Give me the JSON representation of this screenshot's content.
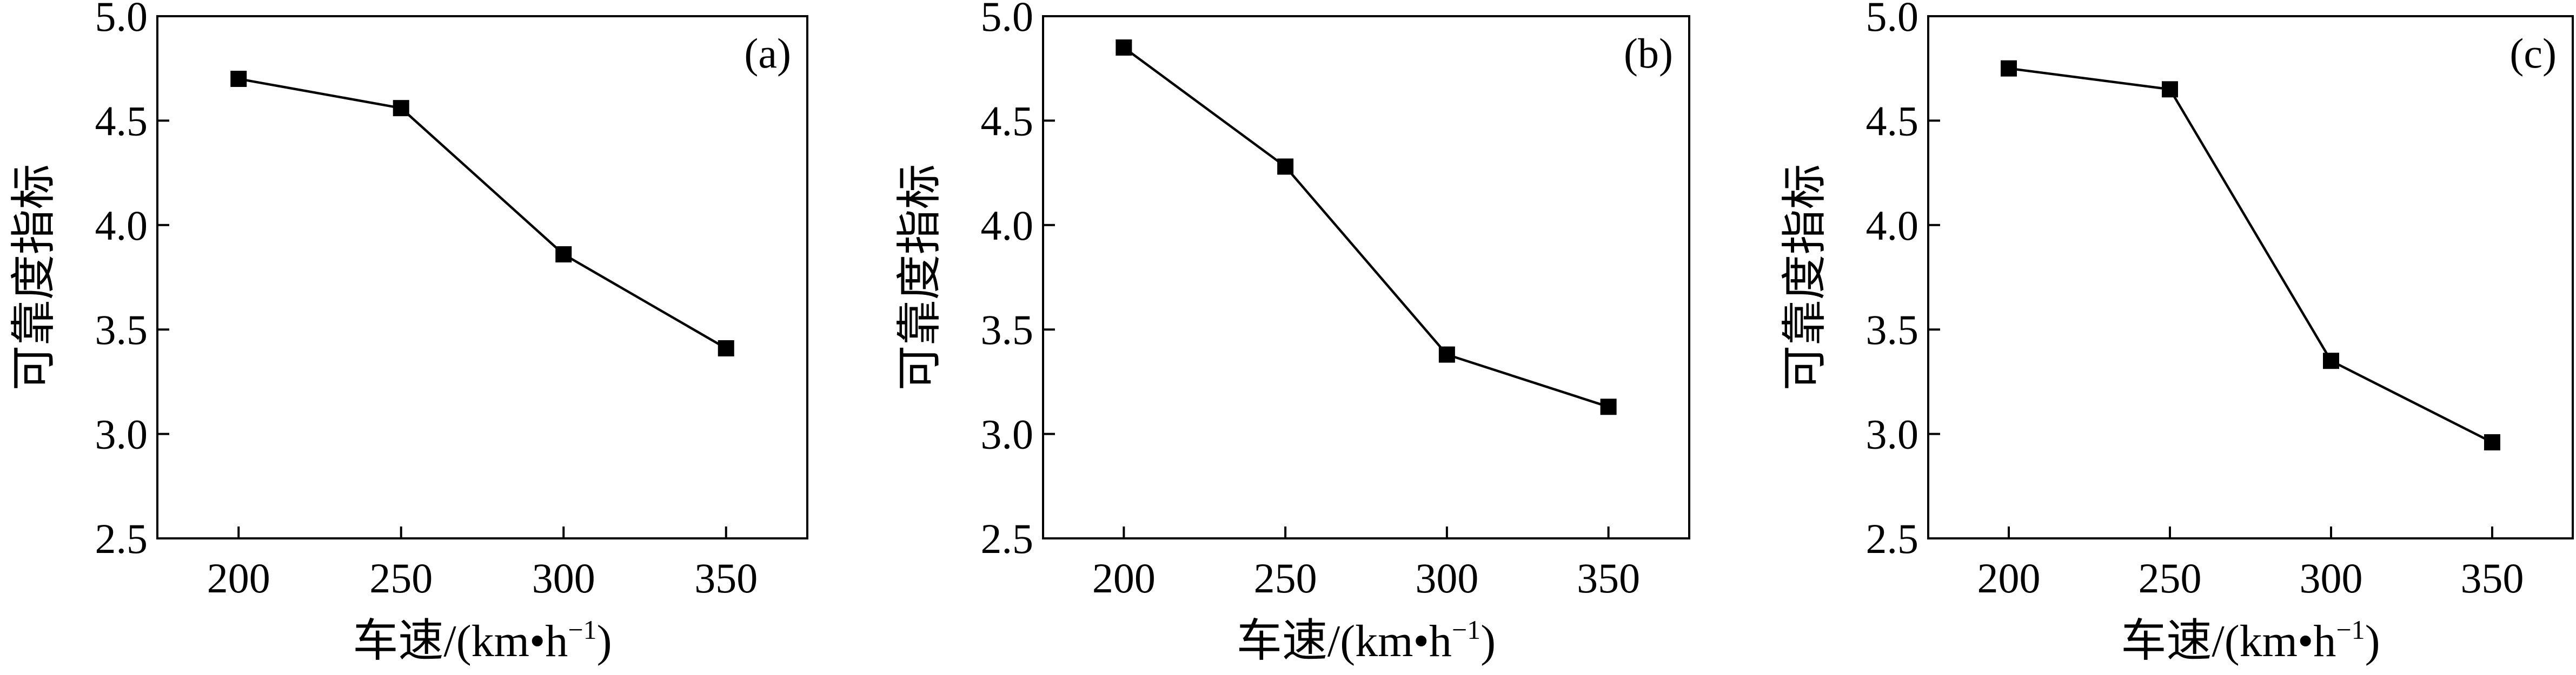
{
  "chart_data": [
    {
      "type": "line",
      "panel_label": "(a)",
      "xlabel": "车速/(km·h⁻¹)",
      "xlabel_parts": {
        "main": "车速/(km•h",
        "sup": "−1",
        "close": ")"
      },
      "ylabel": "可靠度指标",
      "x": [
        200,
        250,
        300,
        350
      ],
      "y": [
        4.7,
        4.56,
        3.86,
        3.41
      ],
      "xlim": [
        175,
        375
      ],
      "ylim": [
        2.5,
        5.0
      ],
      "xticks": [
        "200",
        "250",
        "300",
        "350"
      ],
      "yticks": [
        "2.5",
        "3.0",
        "3.5",
        "4.0",
        "4.5",
        "5.0"
      ],
      "marker": "square",
      "color": "#000000",
      "grid": false
    },
    {
      "type": "line",
      "panel_label": "(b)",
      "xlabel": "车速/(km·h⁻¹)",
      "xlabel_parts": {
        "main": "车速/(km•h",
        "sup": "−1",
        "close": ")"
      },
      "ylabel": "可靠度指标",
      "x": [
        200,
        250,
        300,
        350
      ],
      "y": [
        4.85,
        4.28,
        3.38,
        3.13
      ],
      "xlim": [
        175,
        375
      ],
      "ylim": [
        2.5,
        5.0
      ],
      "xticks": [
        "200",
        "250",
        "300",
        "350"
      ],
      "yticks": [
        "2.5",
        "3.0",
        "3.5",
        "4.0",
        "4.5",
        "5.0"
      ],
      "marker": "square",
      "color": "#000000",
      "grid": false
    },
    {
      "type": "line",
      "panel_label": "(c)",
      "xlabel": "车速/(km·h⁻¹)",
      "xlabel_parts": {
        "main": "车速/(km•h",
        "sup": "−1",
        "close": ")"
      },
      "ylabel": "可靠度指标",
      "x": [
        200,
        250,
        300,
        350
      ],
      "y": [
        4.75,
        4.65,
        3.35,
        2.96
      ],
      "xlim": [
        175,
        375
      ],
      "ylim": [
        2.5,
        5.0
      ],
      "xticks": [
        "200",
        "250",
        "300",
        "350"
      ],
      "yticks": [
        "2.5",
        "3.0",
        "3.5",
        "4.0",
        "4.5",
        "5.0"
      ],
      "marker": "square",
      "color": "#000000",
      "grid": false
    }
  ]
}
